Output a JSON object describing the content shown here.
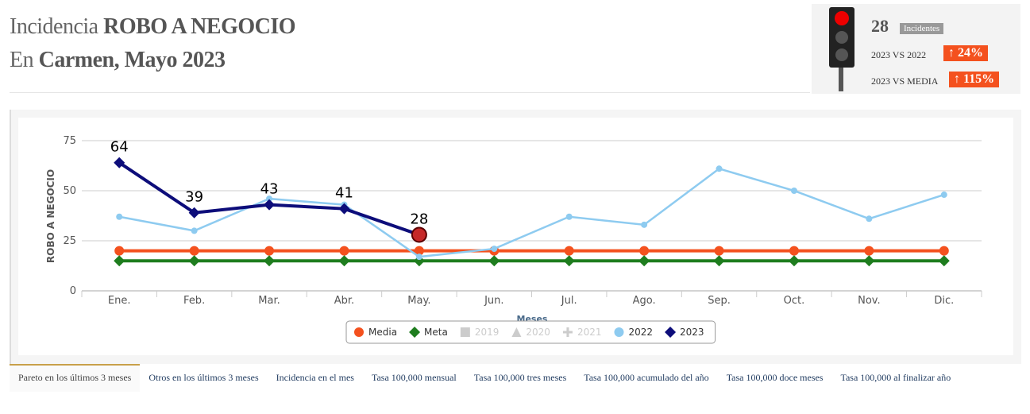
{
  "header": {
    "line1_light": "Incidencia",
    "line1_bold": "ROBO A NEGOCIO",
    "line2_light": "En",
    "line2_bold": "Carmen, Mayo 2023"
  },
  "panel": {
    "count": 28,
    "count_label": "Incidentes",
    "compare_1_label": "2023 VS 2022",
    "compare_1_value": "24%",
    "compare_2_label": "2023 VS MEDIA",
    "compare_2_value": "115%"
  },
  "chart_data": {
    "type": "line",
    "y_label": "ROBO A NEGOCIO",
    "x_label": "Meses",
    "categories": [
      "Ene.",
      "Feb.",
      "Mar.",
      "Abr.",
      "May.",
      "Jun.",
      "Jul.",
      "Ago.",
      "Sep.",
      "Oct.",
      "Nov.",
      "Dic."
    ],
    "ylim": [
      0,
      75
    ],
    "yticks": [
      0,
      25,
      50,
      75
    ],
    "grid": true,
    "series": [
      {
        "name": "Media",
        "color": "#f4511e",
        "marker": "circle",
        "values": [
          20,
          20,
          20,
          20,
          20,
          20,
          20,
          20,
          20,
          20,
          20,
          20
        ]
      },
      {
        "name": "Meta",
        "color": "#1e7d1e",
        "marker": "diamond",
        "values": [
          15,
          15,
          15,
          15,
          15,
          15,
          15,
          15,
          15,
          15,
          15,
          15
        ]
      },
      {
        "name": "2019",
        "color": "#cccccc",
        "marker": "square",
        "hidden": true
      },
      {
        "name": "2020",
        "color": "#cccccc",
        "marker": "triangle",
        "hidden": true
      },
      {
        "name": "2021",
        "color": "#cccccc",
        "marker": "cross",
        "hidden": true
      },
      {
        "name": "2022",
        "color": "#8ecbf0",
        "marker": "circle",
        "values": [
          37,
          30,
          46,
          43,
          17,
          21,
          37,
          33,
          61,
          50,
          36,
          48
        ]
      },
      {
        "name": "2023",
        "color": "#0d0d7a",
        "marker": "diamond",
        "data_labels": true,
        "highlight_last": "#c62828",
        "values": [
          64,
          39,
          43,
          41,
          28,
          null,
          null,
          null,
          null,
          null,
          null,
          null
        ]
      }
    ]
  },
  "tabs": [
    "Pareto en los últimos 3 meses",
    "Otros en los últimos 3 meses",
    "Incidencia en el mes",
    "Tasa 100,000 mensual",
    "Tasa 100,000 tres meses",
    "Tasa 100,000 acumulado del año",
    "Tasa 100,000 doce meses",
    "Tasa 100,000 al finalizar año"
  ]
}
